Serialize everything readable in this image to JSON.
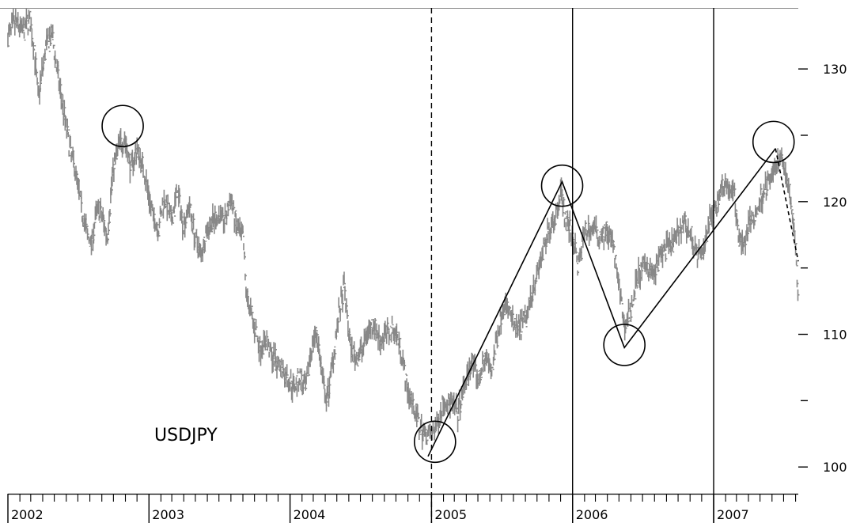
{
  "chart_data": {
    "type": "line",
    "title": "",
    "xlabel": "",
    "ylabel": "",
    "annotation": "USDJPY",
    "x_ticks": [
      "2002",
      "2003",
      "2004",
      "2005",
      "2006",
      "2007"
    ],
    "y_ticks": [
      100,
      110,
      120,
      130
    ],
    "ylim": [
      98.7,
      134.6
    ],
    "xlim": [
      "2002-01-01",
      "2007-08-08"
    ],
    "grid": false,
    "legend": "none",
    "series": [
      {
        "name": "",
        "color": "#888888",
        "points": [
          [
            "2002-01-01",
            132.5
          ],
          [
            "2002-01-20",
            133.5
          ],
          [
            "2002-02-10",
            132.8
          ],
          [
            "2002-02-25",
            133.8
          ],
          [
            "2002-03-10",
            131.5
          ],
          [
            "2002-03-20",
            127.8
          ],
          [
            "2002-04-10",
            131.8
          ],
          [
            "2002-04-25",
            132.5
          ],
          [
            "2002-05-10",
            129.5
          ],
          [
            "2002-05-25",
            126.8
          ],
          [
            "2002-06-10",
            124.0
          ],
          [
            "2002-06-25",
            122.3
          ],
          [
            "2002-07-10",
            119.5
          ],
          [
            "2002-07-25",
            117.5
          ],
          [
            "2002-08-05",
            116.8
          ],
          [
            "2002-08-20",
            119.5
          ],
          [
            "2002-09-01",
            119.0
          ],
          [
            "2002-09-15",
            117.3
          ],
          [
            "2002-09-30",
            122.5
          ],
          [
            "2002-10-15",
            124.2
          ],
          [
            "2002-10-30",
            124.8
          ],
          [
            "2002-11-15",
            122.5
          ],
          [
            "2002-12-01",
            124.0
          ],
          [
            "2002-12-20",
            122.2
          ],
          [
            "2003-01-10",
            119.0
          ],
          [
            "2003-01-25",
            118.0
          ],
          [
            "2003-02-10",
            120.3
          ],
          [
            "2003-02-28",
            118.5
          ],
          [
            "2003-03-15",
            120.8
          ],
          [
            "2003-03-31",
            118.2
          ],
          [
            "2003-04-15",
            119.8
          ],
          [
            "2003-04-30",
            117.3
          ],
          [
            "2003-05-15",
            116.0
          ],
          [
            "2003-06-01",
            118.0
          ],
          [
            "2003-06-15",
            118.5
          ],
          [
            "2003-07-01",
            119.0
          ],
          [
            "2003-07-15",
            118.5
          ],
          [
            "2003-08-01",
            120.3
          ],
          [
            "2003-08-15",
            118.0
          ],
          [
            "2003-09-01",
            117.2
          ],
          [
            "2003-09-10",
            113.0
          ],
          [
            "2003-09-25",
            111.2
          ],
          [
            "2003-10-15",
            109.0
          ],
          [
            "2003-11-01",
            109.5
          ],
          [
            "2003-11-15",
            108.3
          ],
          [
            "2003-12-01",
            107.8
          ],
          [
            "2003-12-20",
            107.0
          ],
          [
            "2004-01-10",
            106.0
          ],
          [
            "2004-01-25",
            106.8
          ],
          [
            "2004-02-10",
            105.8
          ],
          [
            "2004-02-25",
            109.0
          ],
          [
            "2004-03-10",
            110.2
          ],
          [
            "2004-03-25",
            106.5
          ],
          [
            "2004-04-05",
            104.8
          ],
          [
            "2004-04-20",
            108.0
          ],
          [
            "2004-05-05",
            111.3
          ],
          [
            "2004-05-20",
            113.5
          ],
          [
            "2004-06-05",
            109.0
          ],
          [
            "2004-06-20",
            108.2
          ],
          [
            "2004-07-05",
            108.8
          ],
          [
            "2004-07-20",
            110.3
          ],
          [
            "2004-08-05",
            110.8
          ],
          [
            "2004-08-20",
            109.5
          ],
          [
            "2004-09-05",
            110.0
          ],
          [
            "2004-09-25",
            110.5
          ],
          [
            "2004-10-15",
            108.8
          ],
          [
            "2004-10-30",
            105.8
          ],
          [
            "2004-11-15",
            104.6
          ],
          [
            "2004-12-01",
            103.0
          ],
          [
            "2004-12-15",
            102.5
          ],
          [
            "2005-01-01",
            102.5
          ],
          [
            "2005-01-15",
            103.2
          ],
          [
            "2005-02-01",
            105.0
          ],
          [
            "2005-02-20",
            104.8
          ],
          [
            "2005-03-10",
            104.0
          ],
          [
            "2005-03-31",
            106.5
          ],
          [
            "2005-04-15",
            108.0
          ],
          [
            "2005-05-01",
            106.5
          ],
          [
            "2005-05-20",
            108.3
          ],
          [
            "2005-06-05",
            107.2
          ],
          [
            "2005-06-20",
            109.8
          ],
          [
            "2005-07-05",
            112.3
          ],
          [
            "2005-07-20",
            111.8
          ],
          [
            "2005-08-05",
            110.3
          ],
          [
            "2005-08-20",
            110.5
          ],
          [
            "2005-09-05",
            111.5
          ],
          [
            "2005-09-20",
            113.5
          ],
          [
            "2005-10-05",
            115.0
          ],
          [
            "2005-10-20",
            116.5
          ],
          [
            "2005-11-05",
            118.3
          ],
          [
            "2005-11-20",
            119.0
          ],
          [
            "2005-12-01",
            121.0
          ],
          [
            "2005-12-15",
            118.5
          ],
          [
            "2006-01-01",
            117.5
          ],
          [
            "2006-01-15",
            115.0
          ],
          [
            "2006-02-01",
            117.8
          ],
          [
            "2006-02-20",
            118.0
          ],
          [
            "2006-03-10",
            117.5
          ],
          [
            "2006-03-31",
            117.8
          ],
          [
            "2006-04-15",
            116.8
          ],
          [
            "2006-05-01",
            113.5
          ],
          [
            "2006-05-15",
            110.5
          ],
          [
            "2006-06-01",
            112.0
          ],
          [
            "2006-06-20",
            114.5
          ],
          [
            "2006-07-10",
            115.3
          ],
          [
            "2006-08-01",
            114.5
          ],
          [
            "2006-08-20",
            116.3
          ],
          [
            "2006-09-10",
            116.5
          ],
          [
            "2006-09-30",
            117.5
          ],
          [
            "2006-10-15",
            118.5
          ],
          [
            "2006-11-01",
            117.5
          ],
          [
            "2006-11-20",
            116.0
          ],
          [
            "2006-12-01",
            115.8
          ],
          [
            "2006-12-20",
            118.5
          ],
          [
            "2007-01-10",
            120.0
          ],
          [
            "2007-01-25",
            121.5
          ],
          [
            "2007-02-10",
            121.0
          ],
          [
            "2007-02-25",
            120.5
          ],
          [
            "2007-03-05",
            117.5
          ],
          [
            "2007-03-20",
            116.8
          ],
          [
            "2007-04-05",
            118.5
          ],
          [
            "2007-04-20",
            119.0
          ],
          [
            "2007-05-10",
            120.8
          ],
          [
            "2007-05-25",
            121.5
          ],
          [
            "2007-06-10",
            122.5
          ],
          [
            "2007-06-25",
            123.5
          ],
          [
            "2007-07-05",
            122.5
          ],
          [
            "2007-07-15",
            120.8
          ],
          [
            "2007-07-25",
            119.0
          ],
          [
            "2007-08-01",
            116.5
          ],
          [
            "2007-08-08",
            113.0
          ]
        ]
      }
    ],
    "annotations": {
      "trend_lines": [
        {
          "style": "solid",
          "points": [
            [
              "2004-12-23",
              100.8
            ],
            [
              "2005-12-05",
              121.5
            ],
            [
              "2006-05-15",
              109.0
            ],
            [
              "2007-06-10",
              124.0
            ]
          ]
        },
        {
          "style": "dashed",
          "points": [
            [
              "2007-06-10",
              124.0
            ],
            [
              "2007-08-08",
              115.5
            ]
          ]
        }
      ],
      "circles": [
        {
          "date": "2002-10-25",
          "value": 125.7
        },
        {
          "date": "2005-01-10",
          "value": 101.9
        },
        {
          "date": "2005-12-05",
          "value": 121.2
        },
        {
          "date": "2006-05-15",
          "value": 109.2
        },
        {
          "date": "2007-06-05",
          "value": 124.5
        }
      ],
      "vertical_lines": [
        {
          "date": "2005-01-01",
          "style": "dashed"
        },
        {
          "date": "2006-01-01",
          "style": "solid"
        },
        {
          "date": "2007-01-01",
          "style": "solid"
        }
      ]
    }
  }
}
